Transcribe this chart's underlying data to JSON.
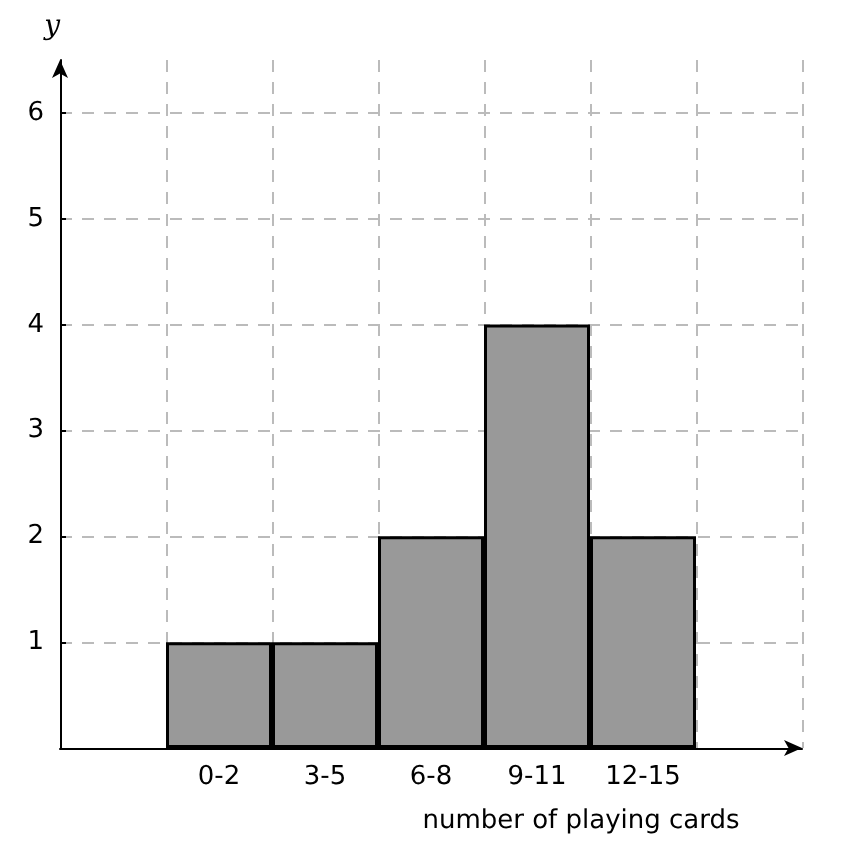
{
  "chart_data": {
    "type": "bar",
    "xlabel": "number of playing cards",
    "ylabel": "y",
    "categories": [
      null,
      "0-2",
      "3-5",
      "6-8",
      "9-11",
      "12-15",
      null
    ],
    "values": [
      null,
      1,
      1,
      2,
      4,
      2,
      null
    ],
    "color": "#999999",
    "ylim": [
      0,
      6.5
    ],
    "yticks": [
      1,
      2,
      3,
      4,
      5,
      6
    ],
    "grid": true
  }
}
